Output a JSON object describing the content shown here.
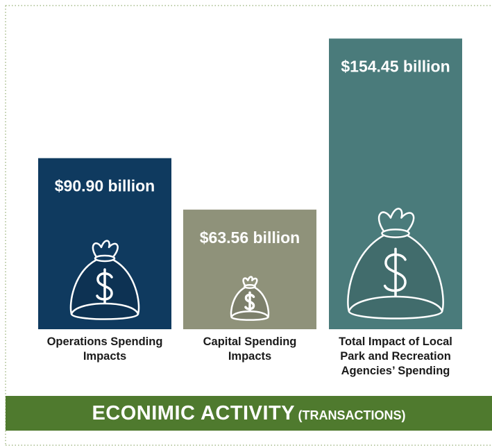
{
  "chart_data": {
    "type": "bar",
    "title": "ECONIMIC ACTIVITY",
    "subtitle": "(TRANSACTIONS)",
    "categories": [
      "Operations Spending Impacts",
      "Capital Spending Impacts",
      "Total Impact of Local Park and Recreation Agencies’ Spending"
    ],
    "values": [
      90.9,
      63.56,
      154.45
    ],
    "value_labels": [
      "$90.90 billion",
      "$63.56 billion",
      "$154.45 billion"
    ],
    "colors": [
      "#0f3a5f",
      "#8f927a",
      "#4a7b7b"
    ],
    "ylim": [
      0,
      155
    ]
  }
}
